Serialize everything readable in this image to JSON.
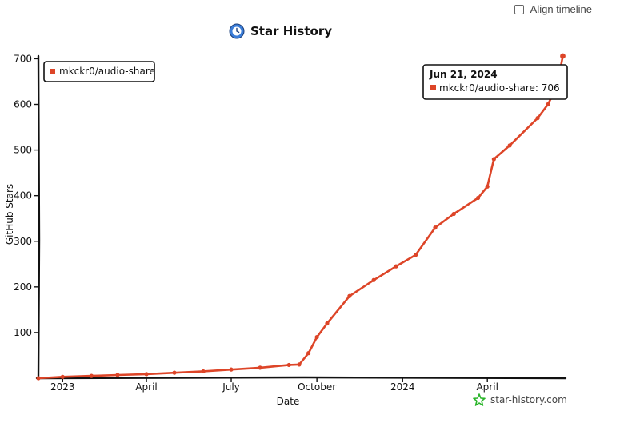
{
  "controls": {
    "align_timeline_label": "Align timeline",
    "align_timeline_checked": false
  },
  "header": {
    "title": "Star History",
    "icon": "clock-icon"
  },
  "watermark": {
    "text": "star-history.com",
    "icon": "star-logo-icon"
  },
  "colors": {
    "series": "#dd4528",
    "axis": "#111111",
    "watermark_icon": "#2ab52a",
    "title_icon": "#3b7dd8"
  },
  "tooltip": {
    "date": "Jun 21, 2024",
    "series_name": "mkckr0/audio-share",
    "value_text": "706"
  },
  "chart_data": {
    "type": "line",
    "title": "Star History",
    "xlabel": "Date",
    "ylabel": "GitHub Stars",
    "ylim": [
      0,
      706
    ],
    "yticks": [
      100,
      200,
      300,
      400,
      500,
      600,
      700
    ],
    "xticks": [
      {
        "label": "2023",
        "date": "2023-01-01"
      },
      {
        "label": "April",
        "date": "2023-04-01"
      },
      {
        "label": "July",
        "date": "2023-07-01"
      },
      {
        "label": "October",
        "date": "2023-10-01"
      },
      {
        "label": "2024",
        "date": "2024-01-01"
      },
      {
        "label": "April",
        "date": "2024-04-01"
      }
    ],
    "xlim": [
      "2022-12-06",
      "2024-06-24"
    ],
    "legend": {
      "position": "top-left"
    },
    "grid": false,
    "series": [
      {
        "name": "mkckr0/audio-share",
        "points": [
          {
            "date": "2022-12-06",
            "stars": 0
          },
          {
            "date": "2023-01-01",
            "stars": 3
          },
          {
            "date": "2023-02-01",
            "stars": 5
          },
          {
            "date": "2023-03-01",
            "stars": 7
          },
          {
            "date": "2023-04-01",
            "stars": 9
          },
          {
            "date": "2023-05-01",
            "stars": 12
          },
          {
            "date": "2023-06-01",
            "stars": 15
          },
          {
            "date": "2023-07-01",
            "stars": 19
          },
          {
            "date": "2023-08-01",
            "stars": 23
          },
          {
            "date": "2023-09-01",
            "stars": 29
          },
          {
            "date": "2023-09-12",
            "stars": 30
          },
          {
            "date": "2023-09-22",
            "stars": 55
          },
          {
            "date": "2023-10-01",
            "stars": 90
          },
          {
            "date": "2023-10-12",
            "stars": 120
          },
          {
            "date": "2023-11-05",
            "stars": 180
          },
          {
            "date": "2023-12-01",
            "stars": 215
          },
          {
            "date": "2023-12-25",
            "stars": 245
          },
          {
            "date": "2024-01-15",
            "stars": 270
          },
          {
            "date": "2024-02-05",
            "stars": 330
          },
          {
            "date": "2024-02-25",
            "stars": 360
          },
          {
            "date": "2024-03-22",
            "stars": 395
          },
          {
            "date": "2024-04-01",
            "stars": 420
          },
          {
            "date": "2024-04-08",
            "stars": 480
          },
          {
            "date": "2024-04-25",
            "stars": 510
          },
          {
            "date": "2024-05-25",
            "stars": 570
          },
          {
            "date": "2024-06-05",
            "stars": 600
          },
          {
            "date": "2024-06-15",
            "stars": 640
          },
          {
            "date": "2024-06-21",
            "stars": 706
          }
        ]
      }
    ]
  }
}
